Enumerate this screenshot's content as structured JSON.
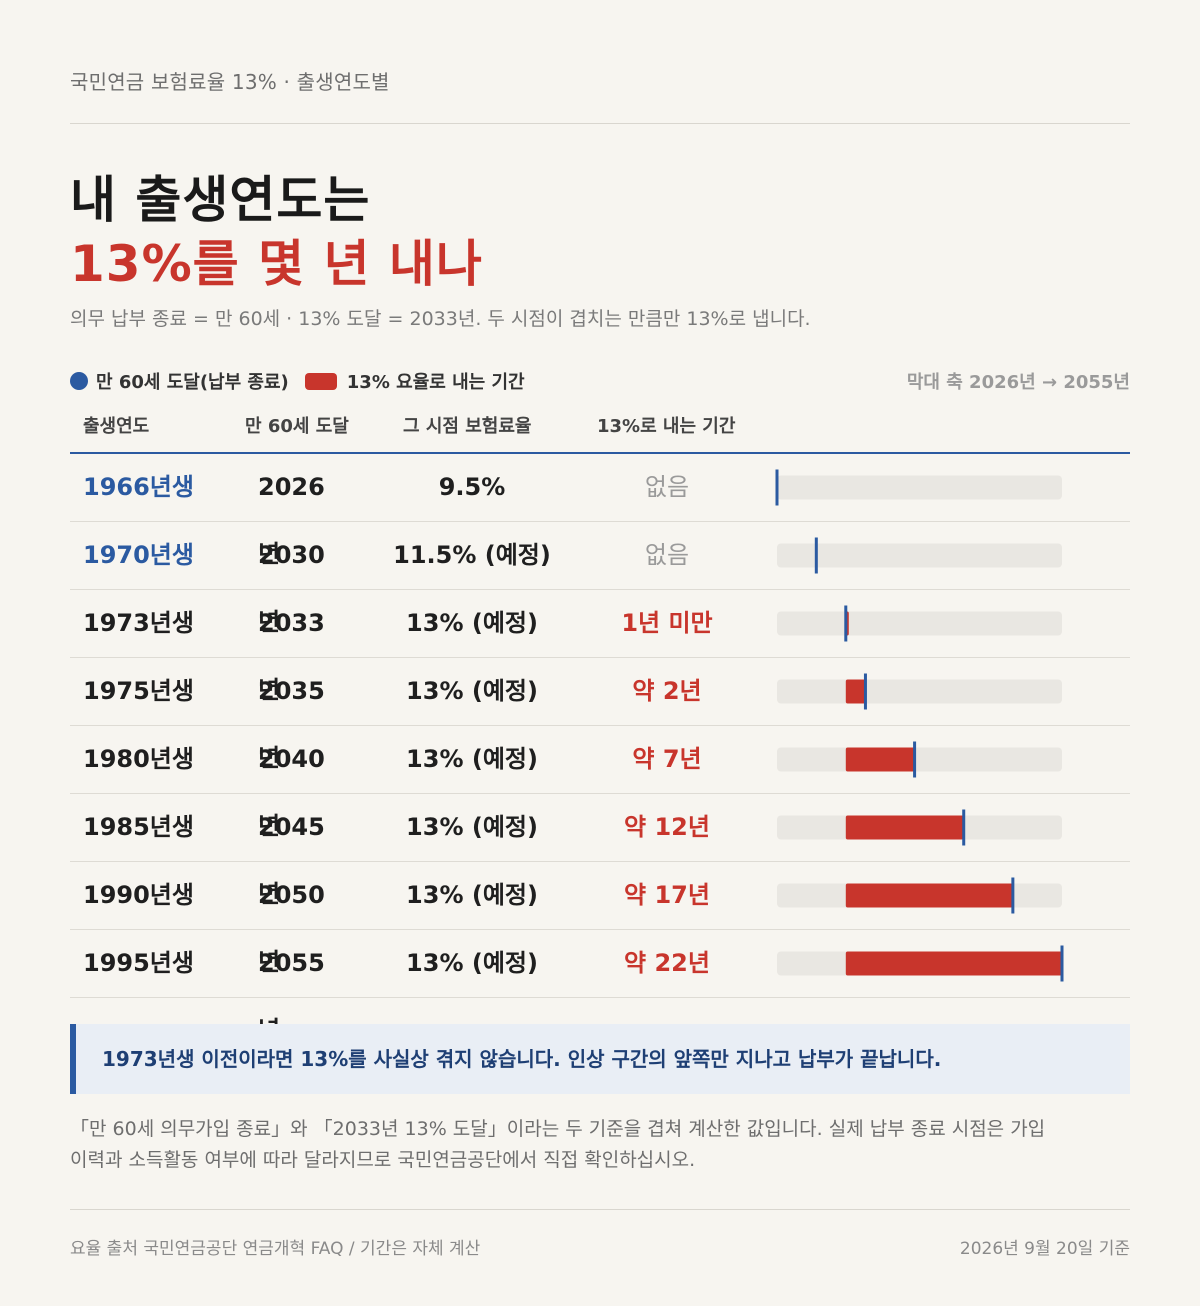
{
  "kicker": "국민연금 보험료율 13% · 출생연도별",
  "title": {
    "line1": "내 출생연도는",
    "line2": "13%를 몇 년 내나"
  },
  "subtitle": "의무 납부 종료 = 만 60세 · 13% 도달 = 2033년. 두 시점이 겹치는 만큼만 13%로 냅니다.",
  "legend": {
    "dot_label": "만 60세 도달(납부 종료)",
    "bar_label": "13% 요율로 내는 기간"
  },
  "axis_note": "막대 축 2026년 → 2055년",
  "columns": [
    "출생연도",
    "만 60세 도달",
    "그 시점 보험료율",
    "13%로 내는 기간"
  ],
  "colors": {
    "accent_blue": "#2b5aa1",
    "accent_red": "#c8352c",
    "track": "#e9e7e2",
    "background": "#f7f5f0"
  },
  "chart_data": {
    "type": "bar",
    "axis_range": [
      2026,
      2055
    ],
    "rate_13_start_year": 2033,
    "rows": [
      {
        "birth": "1966년생",
        "reach": "2026년",
        "rate": "9.5%",
        "period": "없음",
        "end_year": 2026,
        "highlight": "blue",
        "period_style": "none"
      },
      {
        "birth": "1970년생",
        "reach": "2030년",
        "rate": "11.5% (예정)",
        "period": "없음",
        "end_year": 2030,
        "highlight": "blue",
        "period_style": "none"
      },
      {
        "birth": "1973년생",
        "reach": "2033년",
        "rate": "13% (예정)",
        "period": "1년 미만",
        "end_year": 2033,
        "highlight": "",
        "period_style": "red"
      },
      {
        "birth": "1975년생",
        "reach": "2035년",
        "rate": "13% (예정)",
        "period": "약 2년",
        "end_year": 2035,
        "highlight": "",
        "period_style": "red"
      },
      {
        "birth": "1980년생",
        "reach": "2040년",
        "rate": "13% (예정)",
        "period": "약 7년",
        "end_year": 2040,
        "highlight": "",
        "period_style": "red"
      },
      {
        "birth": "1985년생",
        "reach": "2045년",
        "rate": "13% (예정)",
        "period": "약 12년",
        "end_year": 2045,
        "highlight": "",
        "period_style": "red"
      },
      {
        "birth": "1990년생",
        "reach": "2050년",
        "rate": "13% (예정)",
        "period": "약 17년",
        "end_year": 2050,
        "highlight": "",
        "period_style": "red"
      },
      {
        "birth": "1995년생",
        "reach": "2055년",
        "rate": "13% (예정)",
        "period": "약 22년",
        "end_year": 2055,
        "highlight": "",
        "period_style": "red"
      }
    ]
  },
  "callout": "1973년생 이전이라면 13%를 사실상 겪지 않습니다. 인상 구간의 앞쪽만 지나고 납부가 끝납니다.",
  "note": {
    "line1": "「만 60세 의무가입 종료」와 「2033년 13% 도달」이라는 두 기준을 겹쳐 계산한 값입니다. 실제 납부 종료 시점은 가입",
    "line2": "이력과 소득활동 여부에 따라 달라지므로 국민연금공단에서 직접 확인하십시오."
  },
  "footer": {
    "source": "요율 출처 국민연금공단 연금개혁 FAQ / 기간은 자체 계산",
    "date": "2026년 9월 20일 기준"
  }
}
